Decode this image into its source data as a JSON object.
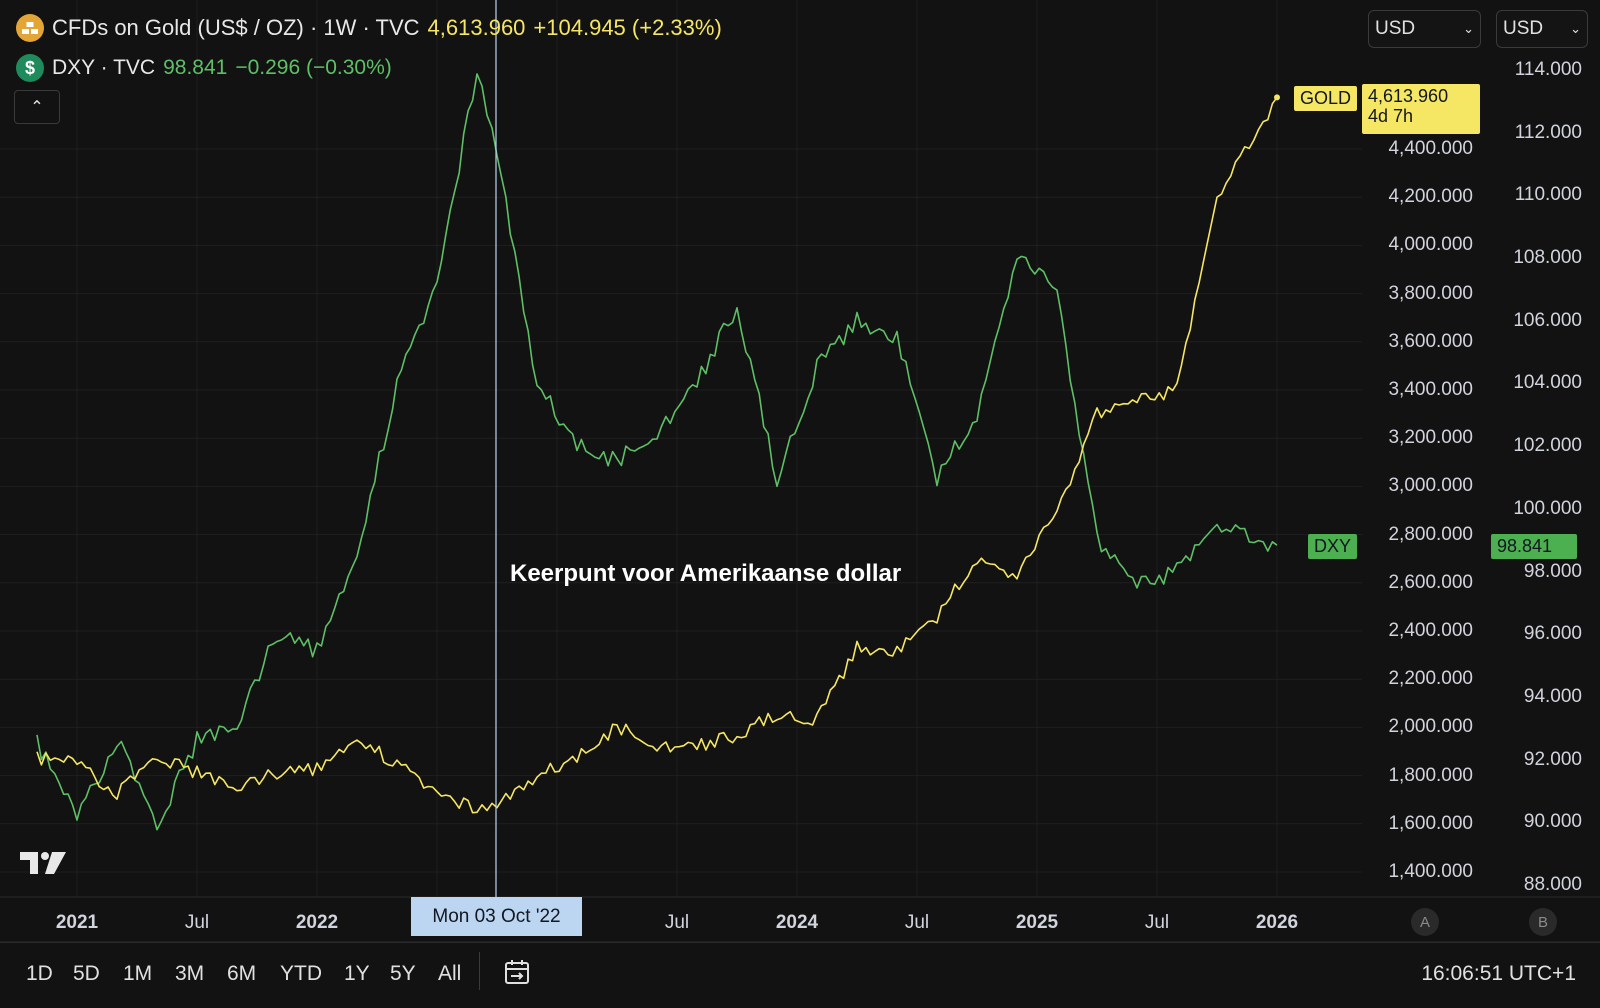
{
  "legend": {
    "gold": {
      "title": "CFDs on Gold (US$ / OZ) · 1W · TVC",
      "price": "4,613.960",
      "change": "+104.945 (+2.33%)",
      "icon": "gold-bars-icon"
    },
    "dxy": {
      "title": "DXY · TVC",
      "price": "98.841",
      "change": "−0.296 (−0.30%)",
      "icon": "dollar-icon"
    }
  },
  "currency_selectors": [
    "USD",
    "USD"
  ],
  "price_labels": {
    "gold_name": "GOLD",
    "gold_value": "4,613.960",
    "gold_countdown": "4d 7h",
    "dxy_name": "DXY",
    "dxy_value": "98.841"
  },
  "annotation": "Keerpunt voor Amerikaanse dollar",
  "cursor_date": "Mon 03 Oct '22",
  "time_axis": [
    "2021",
    "Jul",
    "2022",
    "Jul",
    "2024",
    "Jul",
    "2025",
    "Jul",
    "2026"
  ],
  "gold_axis": [
    "4,400.000",
    "4,200.000",
    "4,000.000",
    "3,800.000",
    "3,600.000",
    "3,400.000",
    "3,200.000",
    "3,000.000",
    "2,800.000",
    "2,600.000",
    "2,400.000",
    "2,200.000",
    "2,000.000",
    "1,800.000",
    "1,600.000",
    "1,400.000"
  ],
  "dxy_axis": [
    "114.000",
    "112.000",
    "110.000",
    "108.000",
    "106.000",
    "104.000",
    "102.000",
    "100.000",
    "98.000",
    "96.000",
    "94.000",
    "92.000",
    "90.000",
    "88.000"
  ],
  "scale_buttons": [
    "A",
    "B"
  ],
  "ranges": [
    "1D",
    "5D",
    "1M",
    "3M",
    "6M",
    "YTD",
    "1Y",
    "5Y",
    "All"
  ],
  "clock": "16:06:51 UTC+1",
  "colors": {
    "gold": "#f5e663",
    "dxy": "#5fbf67",
    "cursor": "#bcd5f0",
    "background": "#121212"
  },
  "chart_data": {
    "type": "line",
    "series": [
      {
        "name": "GOLD",
        "axis": "left",
        "x": [
          "2020-11",
          "2021-01",
          "2021-03",
          "2021-05",
          "2021-07",
          "2021-09",
          "2021-11",
          "2022-01",
          "2022-03",
          "2022-05",
          "2022-07",
          "2022-09",
          "2022-10",
          "2022-12",
          "2023-02",
          "2023-04",
          "2023-06",
          "2023-08",
          "2023-10",
          "2023-12",
          "2024-02",
          "2024-04",
          "2024-06",
          "2024-08",
          "2024-10",
          "2024-12",
          "2025-02",
          "2025-04",
          "2025-06",
          "2025-08",
          "2025-10",
          "2026-01"
        ],
        "y": [
          1870,
          1860,
          1720,
          1880,
          1810,
          1760,
          1810,
          1830,
          1950,
          1850,
          1730,
          1660,
          1690,
          1800,
          1870,
          2000,
          1930,
          1920,
          1970,
          2060,
          2030,
          2330,
          2320,
          2460,
          2700,
          2620,
          2900,
          3300,
          3350,
          3400,
          4200,
          4614
        ]
      },
      {
        "name": "DXY",
        "axis": "right",
        "x": [
          "2020-11",
          "2021-01",
          "2021-03",
          "2021-05",
          "2021-07",
          "2021-09",
          "2021-11",
          "2022-01",
          "2022-03",
          "2022-05",
          "2022-07",
          "2022-09",
          "2022-10",
          "2022-12",
          "2023-02",
          "2023-04",
          "2023-06",
          "2023-08",
          "2023-10",
          "2023-12",
          "2024-02",
          "2024-04",
          "2024-06",
          "2024-08",
          "2024-10",
          "2024-12",
          "2025-02",
          "2025-04",
          "2025-06",
          "2025-08",
          "2025-10",
          "2026-01"
        ],
        "y": [
          92.5,
          90.2,
          92.6,
          89.9,
          92.6,
          93.2,
          96.0,
          95.5,
          98.5,
          104.0,
          107.2,
          114.0,
          111.5,
          104.0,
          102.0,
          101.5,
          102.5,
          104.0,
          106.5,
          101.0,
          104.5,
          106.0,
          105.5,
          101.0,
          103.0,
          108.0,
          107.0,
          99.0,
          97.5,
          98.0,
          99.5,
          98.841
        ]
      }
    ],
    "xlabel": "",
    "ylabel": "",
    "ylim_left": [
      1300,
      4700
    ],
    "ylim_right": [
      87,
      115
    ],
    "legend": "top-left",
    "grid": true
  }
}
